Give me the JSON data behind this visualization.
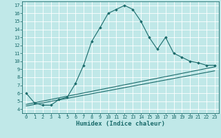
{
  "xlabel": "Humidex (Indice chaleur)",
  "bg_color": "#c0e8e8",
  "line_color": "#1a6b6b",
  "grid_color": "#ffffff",
  "xlim": [
    -0.5,
    23.5
  ],
  "ylim": [
    3.5,
    17.5
  ],
  "xticks": [
    0,
    1,
    2,
    3,
    4,
    5,
    6,
    7,
    8,
    9,
    10,
    11,
    12,
    13,
    14,
    15,
    16,
    17,
    18,
    19,
    20,
    21,
    22,
    23
  ],
  "yticks": [
    4,
    5,
    6,
    7,
    8,
    9,
    10,
    11,
    12,
    13,
    14,
    15,
    16,
    17
  ],
  "line1_x": [
    0,
    1,
    2,
    3,
    4,
    5,
    6,
    7,
    8,
    9,
    10,
    11,
    12,
    13,
    14,
    15,
    16,
    17,
    18,
    19,
    20,
    21,
    22,
    23
  ],
  "line1_y": [
    6.0,
    4.8,
    4.5,
    4.5,
    5.2,
    5.5,
    7.2,
    9.5,
    12.5,
    14.2,
    16.0,
    16.5,
    17.0,
    16.5,
    15.0,
    13.0,
    11.5,
    13.0,
    11.0,
    10.5,
    10.0,
    9.8,
    9.5,
    9.5
  ],
  "line2_x": [
    0,
    23
  ],
  "line2_y": [
    4.6,
    9.3
  ],
  "line3_x": [
    0,
    23
  ],
  "line3_y": [
    4.4,
    8.8
  ],
  "marker": "D",
  "marker_size": 1.8,
  "line_width": 0.8,
  "xlabel_fontsize": 6.5,
  "tick_fontsize": 5.0
}
